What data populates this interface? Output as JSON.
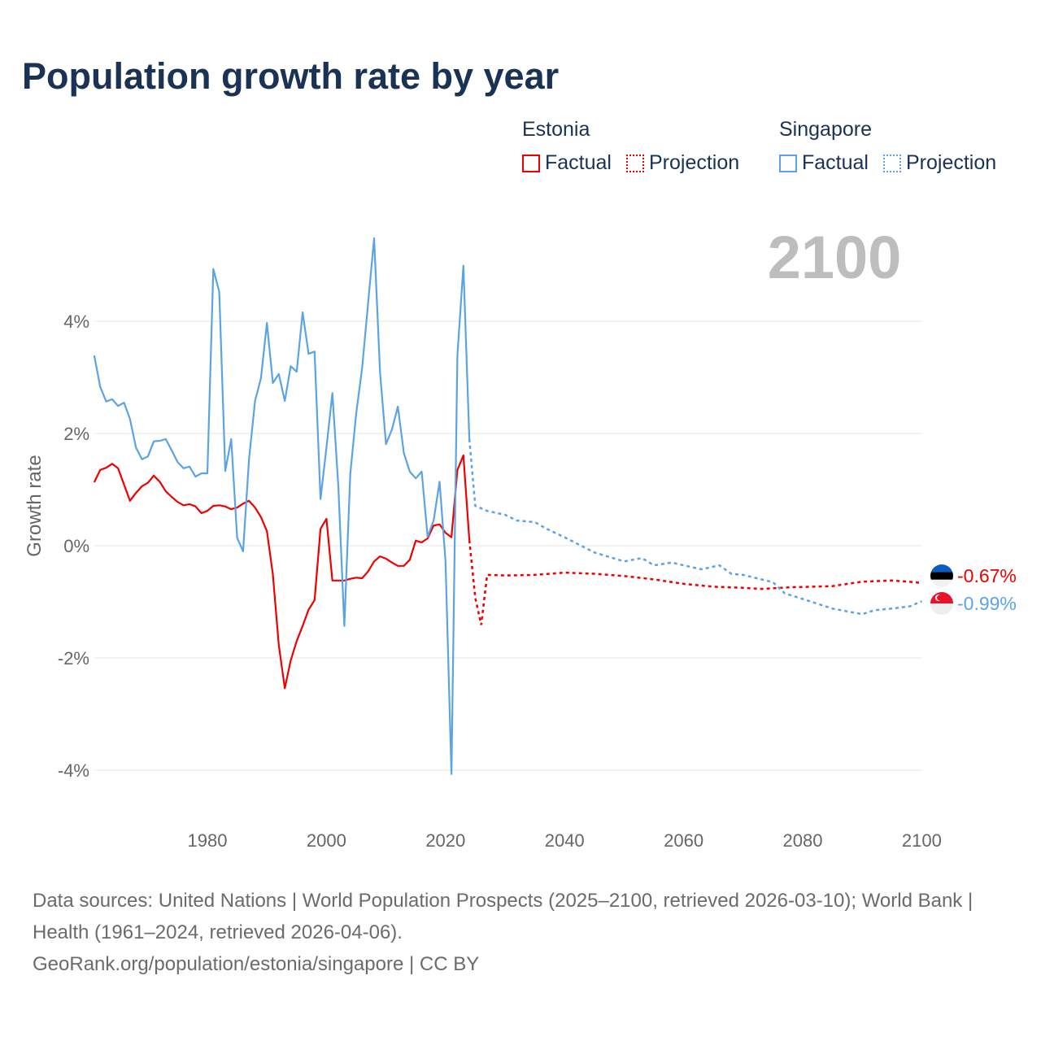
{
  "title": "Population growth rate by year",
  "legend": {
    "groups": [
      {
        "name": "Estonia",
        "factual": "Factual",
        "projection": "Projection",
        "color": "#ee0000"
      },
      {
        "name": "Singapore",
        "factual": "Factual",
        "projection": "Projection",
        "color": "#5ca3e6"
      }
    ]
  },
  "year_display": "2100",
  "footer": {
    "sources": "Data sources: United Nations | World Population Prospects (2025–2100, retrieved 2026-03-10); World Bank | Health (1961–2024, retrieved 2026-04-06).",
    "credit": "GeoRank.org/population/estonia/singapore | CC BY"
  },
  "chart_data": {
    "type": "line",
    "title": "Population growth rate by year",
    "xlabel": "",
    "ylabel": "Growth rate",
    "xlim": [
      1961,
      2100
    ],
    "ylim": [
      -4.8,
      5.6
    ],
    "xticks": [
      1980,
      2000,
      2020,
      2040,
      2060,
      2080,
      2100
    ],
    "xtick_labels": [
      "1980",
      "2000",
      "2020",
      "2040",
      "2060",
      "2080",
      "2100"
    ],
    "yticks": [
      4,
      2,
      0,
      -2,
      -4
    ],
    "ytick_labels": [
      "4%",
      "2%",
      "0%",
      "-2%",
      "-4%"
    ],
    "grid": true,
    "series": [
      {
        "name": "Estonia",
        "color": "#ee0000",
        "end_label": "-0.67%",
        "factual": {
          "start": 1961,
          "values": [
            1.13,
            1.35,
            1.39,
            1.46,
            1.38,
            1.09,
            0.8,
            0.94,
            1.06,
            1.12,
            1.25,
            1.14,
            0.97,
            0.87,
            0.78,
            0.72,
            0.74,
            0.7,
            0.58,
            0.62,
            0.71,
            0.72,
            0.7,
            0.65,
            0.68,
            0.75,
            0.8,
            0.68,
            0.51,
            0.26,
            -0.51,
            -1.77,
            -2.54,
            -2.04,
            -1.7,
            -1.43,
            -1.14,
            -0.97,
            0.3,
            0.48,
            -0.62,
            -0.62,
            -0.62,
            -0.59,
            -0.57,
            -0.58,
            -0.46,
            -0.28,
            -0.19,
            -0.23,
            -0.3,
            -0.36,
            -0.36,
            -0.25,
            0.09,
            0.06,
            0.13,
            0.36,
            0.38,
            0.23,
            0.15,
            1.35,
            1.61,
            0.1
          ]
        },
        "projection": {
          "x": [
            2024,
            2025,
            2026,
            2027,
            2030,
            2035,
            2040,
            2045,
            2050,
            2055,
            2060,
            2065,
            2070,
            2073,
            2078,
            2085,
            2090,
            2095,
            2099,
            2100
          ],
          "values": [
            0.1,
            -0.93,
            -1.41,
            -0.52,
            -0.53,
            -0.52,
            -0.48,
            -0.5,
            -0.54,
            -0.6,
            -0.68,
            -0.73,
            -0.75,
            -0.77,
            -0.74,
            -0.72,
            -0.64,
            -0.62,
            -0.65,
            -0.67
          ]
        }
      },
      {
        "name": "Singapore",
        "color": "#5ca3e6",
        "end_label": "-0.99%",
        "factual": {
          "start": 1961,
          "values": [
            3.39,
            2.83,
            2.57,
            2.61,
            2.49,
            2.55,
            2.26,
            1.75,
            1.54,
            1.59,
            1.86,
            1.87,
            1.9,
            1.7,
            1.49,
            1.38,
            1.41,
            1.23,
            1.29,
            1.29,
            4.93,
            4.52,
            1.33,
            1.9,
            0.14,
            -0.1,
            1.54,
            2.58,
            2.99,
            3.97,
            2.9,
            3.06,
            2.58,
            3.2,
            3.1,
            4.16,
            3.42,
            3.46,
            0.83,
            1.75,
            2.72,
            1.06,
            -1.43,
            1.28,
            2.36,
            3.17,
            4.32,
            5.48,
            3.09,
            1.81,
            2.07,
            2.48,
            1.65,
            1.32,
            1.2,
            1.32,
            0.16,
            0.45,
            1.14,
            -0.28,
            -4.07,
            3.39,
            4.99,
            1.9
          ]
        },
        "projection": {
          "x": [
            2024,
            2025,
            2027,
            2030,
            2032,
            2035,
            2037,
            2040,
            2045,
            2050,
            2053,
            2055,
            2058,
            2060,
            2063,
            2066,
            2068,
            2070,
            2075,
            2077,
            2080,
            2085,
            2090,
            2092,
            2095,
            2098,
            2100
          ],
          "values": [
            1.9,
            0.71,
            0.62,
            0.55,
            0.45,
            0.42,
            0.3,
            0.15,
            -0.12,
            -0.28,
            -0.22,
            -0.35,
            -0.3,
            -0.35,
            -0.42,
            -0.35,
            -0.5,
            -0.52,
            -0.65,
            -0.85,
            -0.95,
            -1.12,
            -1.22,
            -1.15,
            -1.12,
            -1.08,
            -0.99
          ]
        }
      }
    ]
  }
}
